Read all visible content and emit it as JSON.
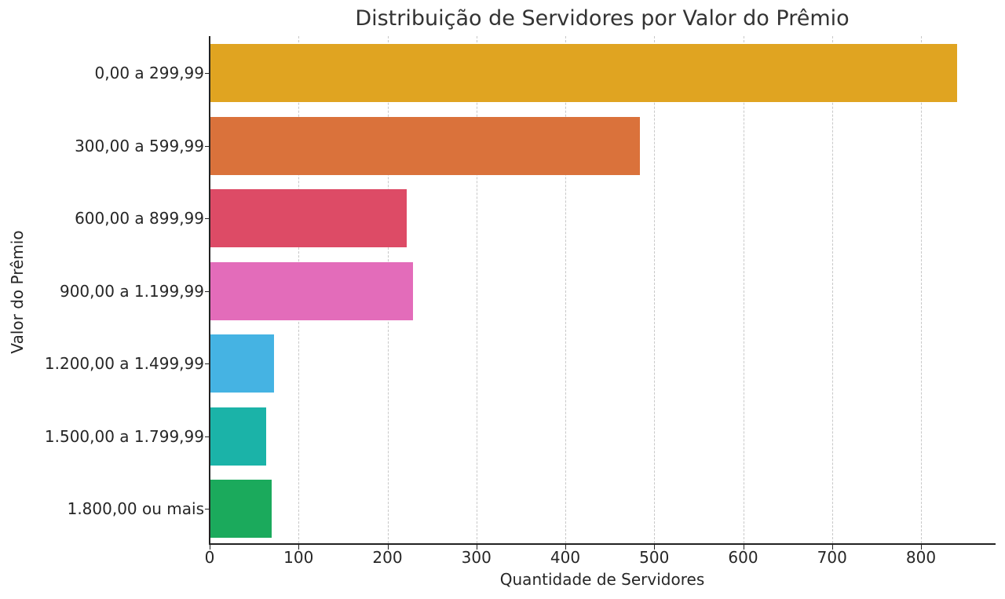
{
  "chart_data": {
    "type": "bar",
    "orientation": "horizontal",
    "title": "Distribuição de Servidores por Valor do Prêmio",
    "xlabel": "Quantidade de Servidores",
    "ylabel": "Valor do Prêmio",
    "categories": [
      "0,00 a 299,99",
      "300,00 a 599,99",
      "600,00 a 899,99",
      "900,00 a 1.199,99",
      "1.200,00 a 1.499,99",
      "1.500,00 a 1.799,99",
      "1.800,00 ou mais"
    ],
    "values": [
      841,
      484,
      222,
      229,
      72,
      64,
      70
    ],
    "colors": [
      "#E0A421",
      "#DA723B",
      "#DD4B66",
      "#E36CBA",
      "#45B3E3",
      "#1BB3A8",
      "#1BAA5C"
    ],
    "xlim": [
      0,
      883
    ],
    "xticks": [
      "0",
      "100",
      "200",
      "300",
      "400",
      "500",
      "600",
      "700",
      "800"
    ],
    "grid": "x-dashed",
    "legend": null
  }
}
